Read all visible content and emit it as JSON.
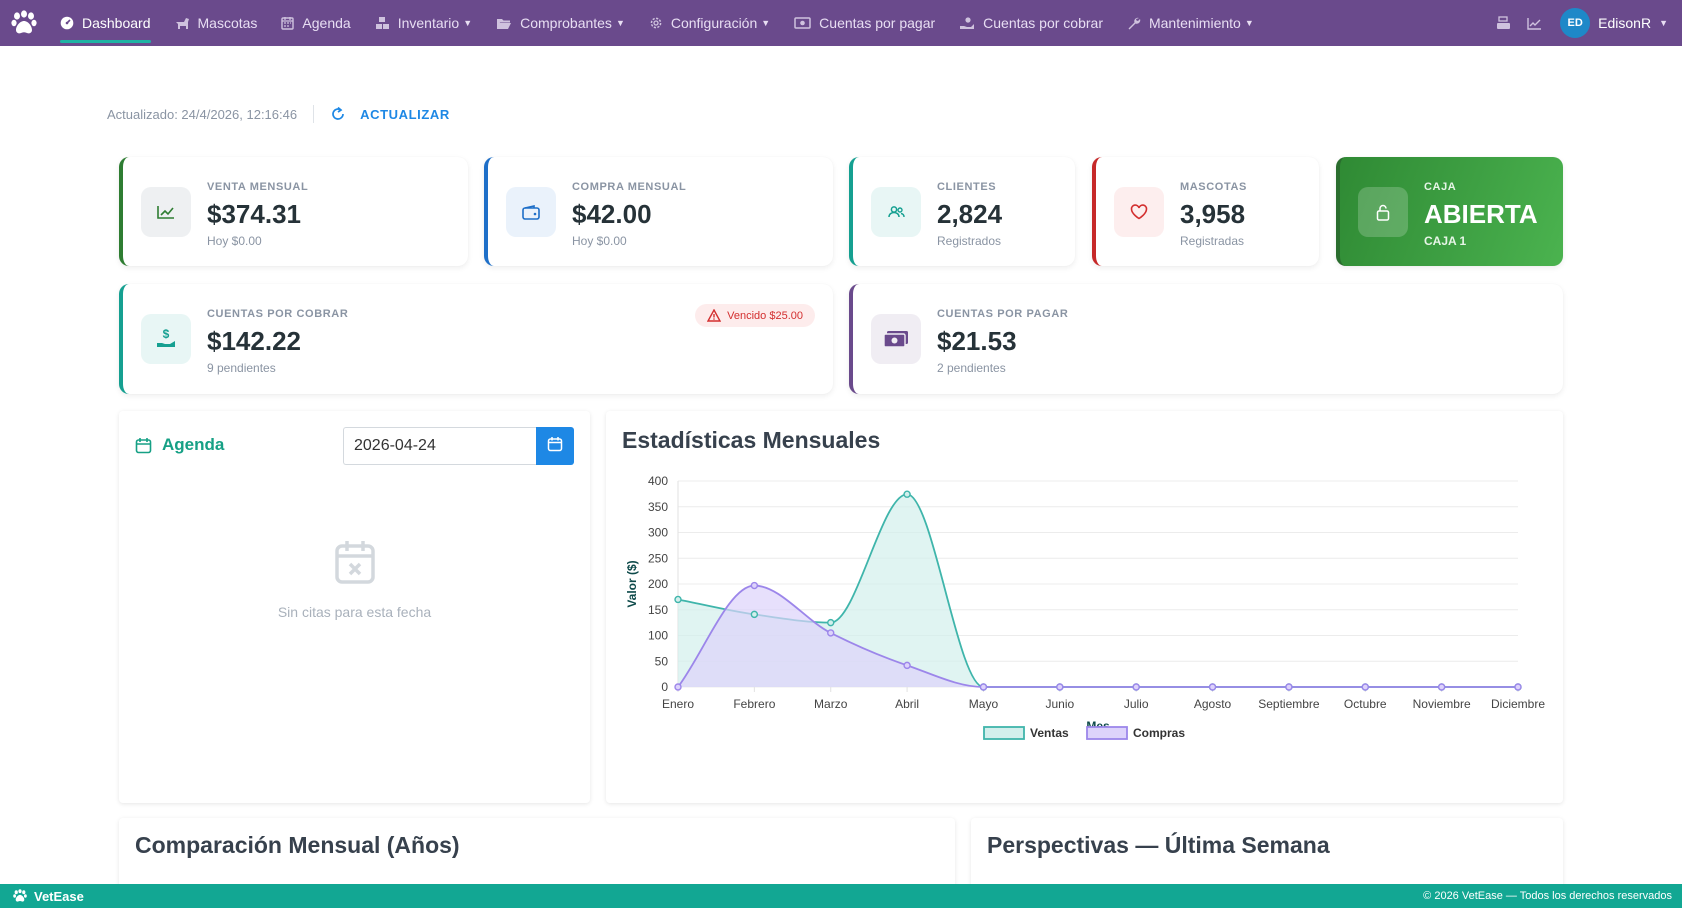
{
  "nav": {
    "items": [
      {
        "label": "Dashboard",
        "icon": "dashboard-icon",
        "active": true,
        "dropdown": false
      },
      {
        "label": "Mascotas",
        "icon": "dog-icon",
        "active": false,
        "dropdown": false
      },
      {
        "label": "Agenda",
        "icon": "calendar-icon",
        "active": false,
        "dropdown": false
      },
      {
        "label": "Inventario",
        "icon": "boxes-icon",
        "active": false,
        "dropdown": true
      },
      {
        "label": "Comprobantes",
        "icon": "folder-icon",
        "active": false,
        "dropdown": true
      },
      {
        "label": "Configuración",
        "icon": "gear-icon",
        "active": false,
        "dropdown": true
      },
      {
        "label": "Cuentas por pagar",
        "icon": "money-bill-icon",
        "active": false,
        "dropdown": false
      },
      {
        "label": "Cuentas por cobrar",
        "icon": "hand-coin-icon",
        "active": false,
        "dropdown": false
      },
      {
        "label": "Mantenimiento",
        "icon": "wrench-icon",
        "active": false,
        "dropdown": true
      }
    ],
    "user": {
      "initials": "ED",
      "name": "EdisonR"
    }
  },
  "update": {
    "text": "Actualizado: 24/4/2026, 12:16:46",
    "refresh_label": "ACTUALIZAR"
  },
  "stats": {
    "venta": {
      "label": "VENTA MENSUAL",
      "value": "$374.31",
      "sub": "Hoy $0.00"
    },
    "compra": {
      "label": "COMPRA MENSUAL",
      "value": "$42.00",
      "sub": "Hoy $0.00"
    },
    "clientes": {
      "label": "CLIENTES",
      "value": "2,824",
      "sub": "Registrados"
    },
    "mascotas": {
      "label": "MASCOTAS",
      "value": "3,958",
      "sub": "Registradas"
    },
    "caja": {
      "label": "CAJA",
      "value": "ABIERTA",
      "sub": "CAJA 1"
    },
    "cobrar": {
      "label": "CUENTAS POR COBRAR",
      "value": "$142.22",
      "sub": "9 pendientes",
      "badge": "Vencido $25.00"
    },
    "pagar": {
      "label": "CUENTAS POR PAGAR",
      "value": "$21.53",
      "sub": "2 pendientes"
    }
  },
  "agenda": {
    "title": "Agenda",
    "date": "2026-04-24",
    "empty": "Sin citas para esta fecha"
  },
  "panels": {
    "stats_title": "Estadísticas Mensuales",
    "comparison_title": "Comparación Mensual (Años)",
    "perspectives_title": "Perspectivas — Última Semana"
  },
  "chart_data": {
    "type": "line",
    "xlabel": "Mes",
    "ylabel": "Valor ($)",
    "ylim": [
      0,
      400
    ],
    "yticks": [
      0,
      50,
      100,
      150,
      200,
      250,
      300,
      350,
      400
    ],
    "categories": [
      "Enero",
      "Febrero",
      "Marzo",
      "Abril",
      "Mayo",
      "Junio",
      "Julio",
      "Agosto",
      "Septiembre",
      "Octubre",
      "Noviembre",
      "Diciembre"
    ],
    "series": [
      {
        "name": "Ventas",
        "color": "#3fb5ab",
        "fill": "#d3efec",
        "values": [
          170,
          141,
          125,
          374.31,
          0,
          0,
          0,
          0,
          0,
          0,
          0,
          0
        ]
      },
      {
        "name": "Compras",
        "color": "#9c86ea",
        "fill": "#ddd3fb",
        "values": [
          0,
          197,
          105,
          42,
          0,
          0,
          0,
          0,
          0,
          0,
          0,
          0
        ]
      }
    ],
    "legend": "bottom",
    "grid": true,
    "area": true
  },
  "footer": {
    "brand": "VetEase",
    "copy": "© 2026 VetEase — Todos los derechos reservados"
  },
  "colors": {
    "nav": "#6a4a8c",
    "accent": "#12a793",
    "primary": "#1e88e5",
    "caja": "#3ea043"
  }
}
